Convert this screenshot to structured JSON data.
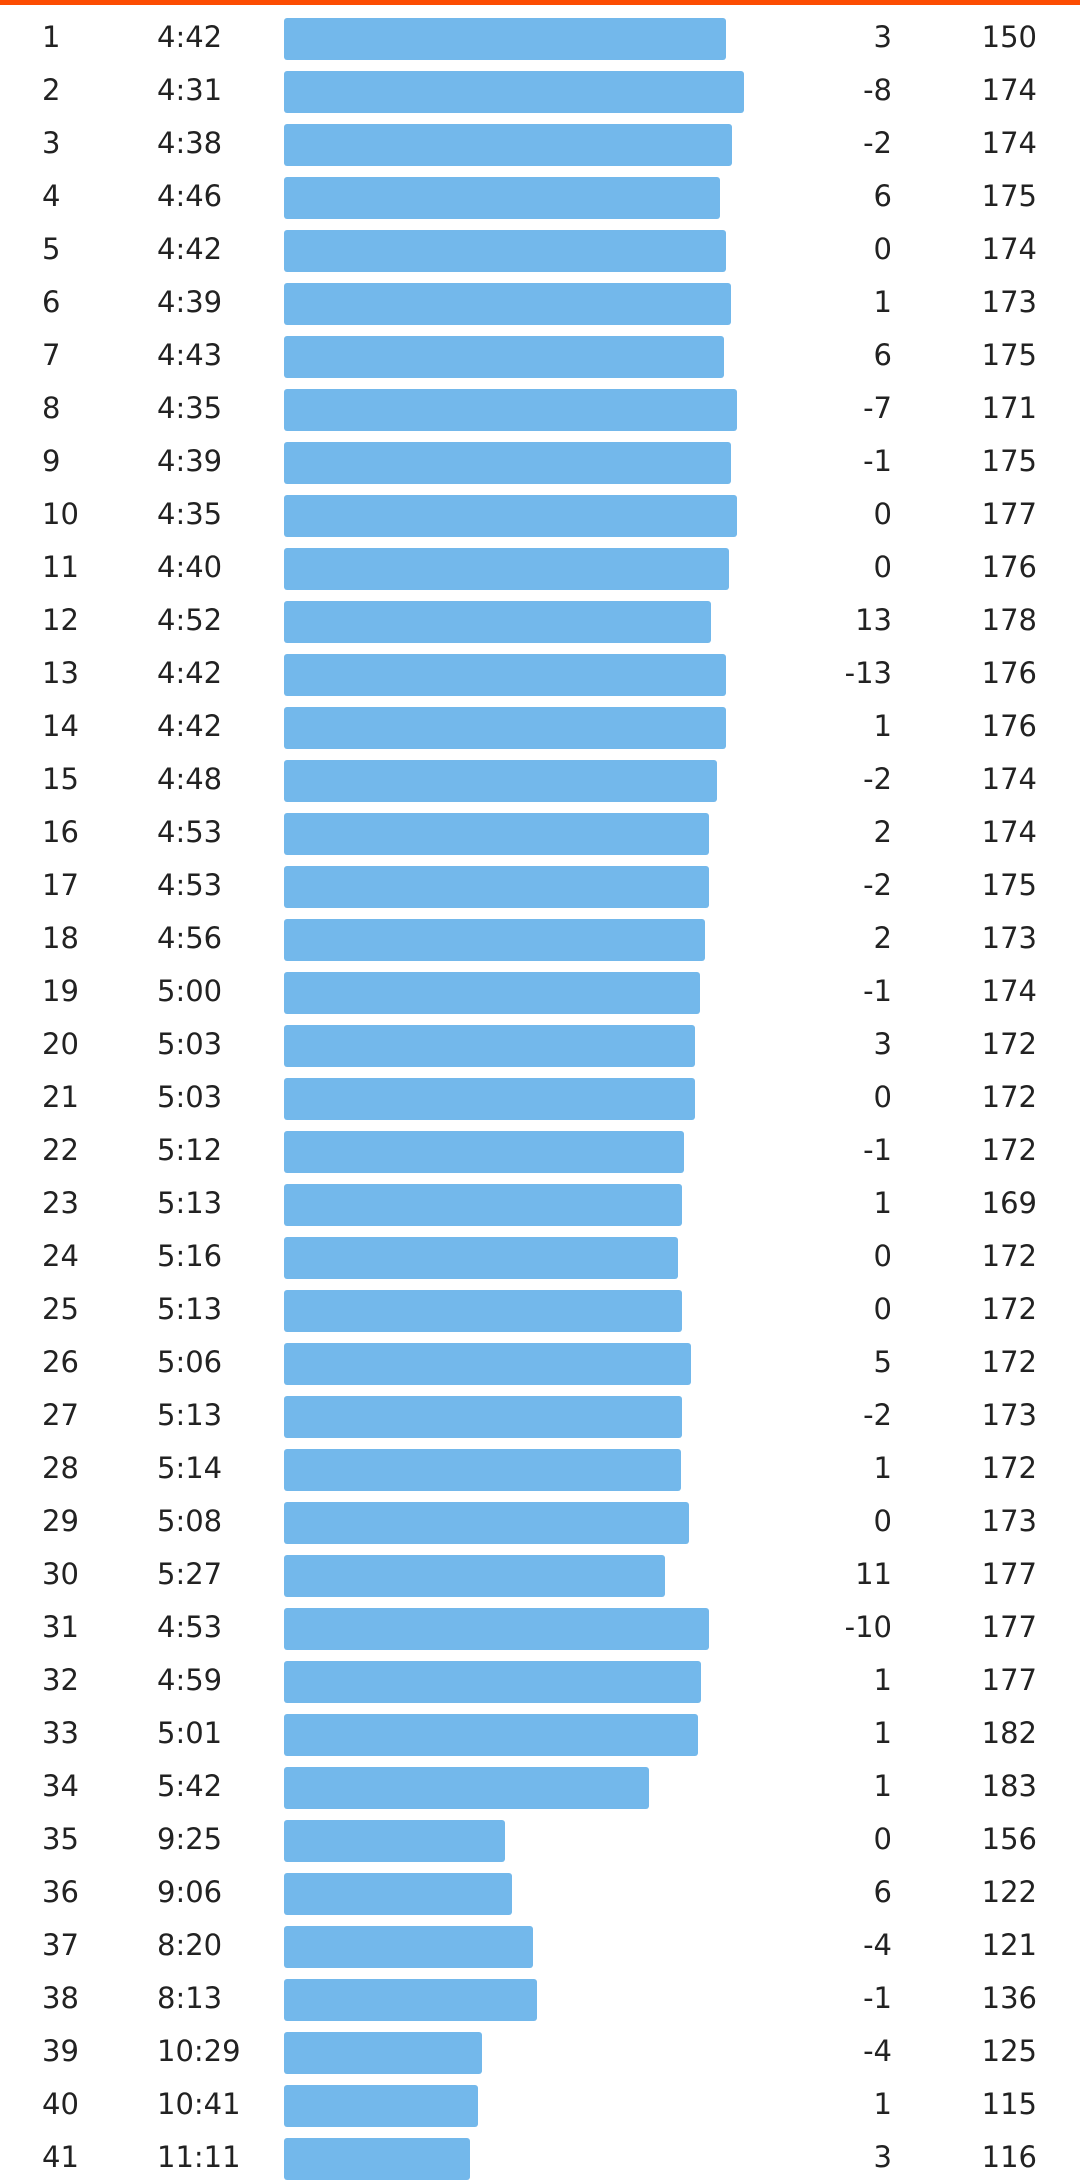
{
  "colors": {
    "accent": "#fc4c02",
    "bar": "#73b8eb",
    "text": "#222222"
  },
  "splits": [
    {
      "km": "1",
      "pace": "4:42",
      "elev": "3",
      "hr": "150"
    },
    {
      "km": "2",
      "pace": "4:31",
      "elev": "-8",
      "hr": "174"
    },
    {
      "km": "3",
      "pace": "4:38",
      "elev": "-2",
      "hr": "174"
    },
    {
      "km": "4",
      "pace": "4:46",
      "elev": "6",
      "hr": "175"
    },
    {
      "km": "5",
      "pace": "4:42",
      "elev": "0",
      "hr": "174"
    },
    {
      "km": "6",
      "pace": "4:39",
      "elev": "1",
      "hr": "173"
    },
    {
      "km": "7",
      "pace": "4:43",
      "elev": "6",
      "hr": "175"
    },
    {
      "km": "8",
      "pace": "4:35",
      "elev": "-7",
      "hr": "171"
    },
    {
      "km": "9",
      "pace": "4:39",
      "elev": "-1",
      "hr": "175"
    },
    {
      "km": "10",
      "pace": "4:35",
      "elev": "0",
      "hr": "177"
    },
    {
      "km": "11",
      "pace": "4:40",
      "elev": "0",
      "hr": "176"
    },
    {
      "km": "12",
      "pace": "4:52",
      "elev": "13",
      "hr": "178"
    },
    {
      "km": "13",
      "pace": "4:42",
      "elev": "-13",
      "hr": "176"
    },
    {
      "km": "14",
      "pace": "4:42",
      "elev": "1",
      "hr": "176"
    },
    {
      "km": "15",
      "pace": "4:48",
      "elev": "-2",
      "hr": "174"
    },
    {
      "km": "16",
      "pace": "4:53",
      "elev": "2",
      "hr": "174"
    },
    {
      "km": "17",
      "pace": "4:53",
      "elev": "-2",
      "hr": "175"
    },
    {
      "km": "18",
      "pace": "4:56",
      "elev": "2",
      "hr": "173"
    },
    {
      "km": "19",
      "pace": "5:00",
      "elev": "-1",
      "hr": "174"
    },
    {
      "km": "20",
      "pace": "5:03",
      "elev": "3",
      "hr": "172"
    },
    {
      "km": "21",
      "pace": "5:03",
      "elev": "0",
      "hr": "172"
    },
    {
      "km": "22",
      "pace": "5:12",
      "elev": "-1",
      "hr": "172"
    },
    {
      "km": "23",
      "pace": "5:13",
      "elev": "1",
      "hr": "169"
    },
    {
      "km": "24",
      "pace": "5:16",
      "elev": "0",
      "hr": "172"
    },
    {
      "km": "25",
      "pace": "5:13",
      "elev": "0",
      "hr": "172"
    },
    {
      "km": "26",
      "pace": "5:06",
      "elev": "5",
      "hr": "172"
    },
    {
      "km": "27",
      "pace": "5:13",
      "elev": "-2",
      "hr": "173"
    },
    {
      "km": "28",
      "pace": "5:14",
      "elev": "1",
      "hr": "172"
    },
    {
      "km": "29",
      "pace": "5:08",
      "elev": "0",
      "hr": "173"
    },
    {
      "km": "30",
      "pace": "5:27",
      "elev": "11",
      "hr": "177"
    },
    {
      "km": "31",
      "pace": "4:53",
      "elev": "-10",
      "hr": "177"
    },
    {
      "km": "32",
      "pace": "4:59",
      "elev": "1",
      "hr": "177"
    },
    {
      "km": "33",
      "pace": "5:01",
      "elev": "1",
      "hr": "182"
    },
    {
      "km": "34",
      "pace": "5:42",
      "elev": "1",
      "hr": "183"
    },
    {
      "km": "35",
      "pace": "9:25",
      "elev": "0",
      "hr": "156"
    },
    {
      "km": "36",
      "pace": "9:06",
      "elev": "6",
      "hr": "122"
    },
    {
      "km": "37",
      "pace": "8:20",
      "elev": "-4",
      "hr": "121"
    },
    {
      "km": "38",
      "pace": "8:13",
      "elev": "-1",
      "hr": "136"
    },
    {
      "km": "39",
      "pace": "10:29",
      "elev": "-4",
      "hr": "125"
    },
    {
      "km": "40",
      "pace": "10:41",
      "elev": "1",
      "hr": "115"
    },
    {
      "km": "41",
      "pace": "11:11",
      "elev": "3",
      "hr": "116"
    }
  ]
}
